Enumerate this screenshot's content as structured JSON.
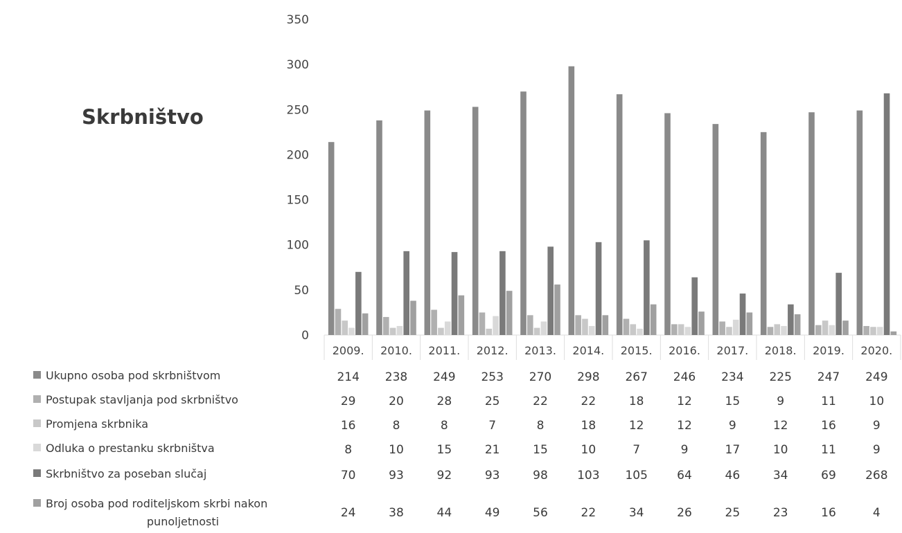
{
  "chart_data": {
    "type": "bar",
    "title": "Skrbništvo",
    "categories": [
      "2009.",
      "2010.",
      "2011.",
      "2012.",
      "2013.",
      "2014.",
      "2015.",
      "2016.",
      "2017.",
      "2018.",
      "2019.",
      "2020."
    ],
    "ylim": [
      0,
      350
    ],
    "yticks": [
      0,
      50,
      100,
      150,
      200,
      250,
      300,
      350
    ],
    "grid": false,
    "legend": "data-table-below",
    "series": [
      {
        "name": "Ukupno osoba pod skrbništvom",
        "color": "#8a8a8a",
        "values": [
          214,
          238,
          249,
          253,
          270,
          298,
          267,
          246,
          234,
          225,
          247,
          249
        ]
      },
      {
        "name": "Postupak stavljanja pod skrbništvo",
        "color": "#b0b0b0",
        "values": [
          29,
          20,
          28,
          25,
          22,
          22,
          18,
          12,
          15,
          9,
          11,
          10
        ]
      },
      {
        "name": "Promjena skrbnika",
        "color": "#c8c8c8",
        "values": [
          16,
          8,
          8,
          7,
          8,
          18,
          12,
          12,
          9,
          12,
          16,
          9
        ]
      },
      {
        "name": "Odluka o prestanku skrbništva",
        "color": "#d9d9d9",
        "values": [
          8,
          10,
          15,
          21,
          15,
          10,
          7,
          9,
          17,
          10,
          11,
          9
        ]
      },
      {
        "name": "Skrbništvo za poseban slučaj",
        "color": "#7a7a7a",
        "values": [
          70,
          93,
          92,
          93,
          98,
          103,
          105,
          64,
          46,
          34,
          69,
          268
        ]
      },
      {
        "name": "Broj osoba pod roditeljskom skrbi nakon punoljetnosti",
        "color": "#a0a0a0",
        "values": [
          24,
          38,
          44,
          49,
          56,
          22,
          34,
          26,
          25,
          23,
          16,
          4
        ]
      }
    ]
  }
}
